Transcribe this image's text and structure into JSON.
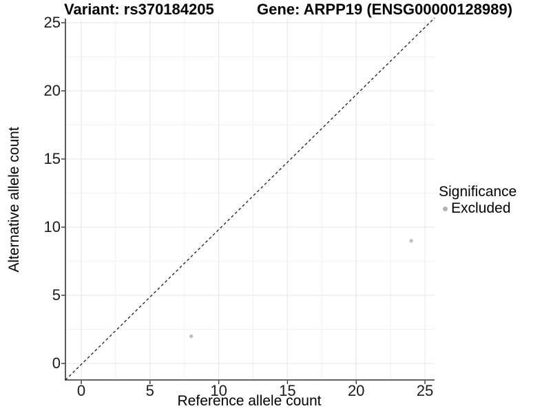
{
  "title": {
    "variant": "Variant: rs370184205",
    "gene": "Gene: ARPP19 (ENSG00000128989)"
  },
  "chart_data": {
    "type": "scatter",
    "title": "Variant: rs370184205   Gene: ARPP19 (ENSG00000128989)",
    "xlabel": "Reference allele count",
    "ylabel": "Alternative allele count",
    "xlim": [
      -1.1,
      25.7
    ],
    "ylim": [
      -1.2,
      25.3
    ],
    "x_ticks": [
      0,
      5,
      10,
      15,
      20,
      25
    ],
    "y_ticks": [
      0,
      5,
      10,
      15,
      20,
      25
    ],
    "minor_ticks": [
      2.5,
      7.5,
      12.5,
      17.5,
      22.5
    ],
    "grid": true,
    "reference_line": {
      "type": "identity-diagonal",
      "style": "dashed",
      "color": "#1a1a1a"
    },
    "series": [
      {
        "name": "Excluded",
        "color": "#bfbfbf",
        "points": [
          {
            "x": 8,
            "y": 2
          },
          {
            "x": 24,
            "y": 9
          }
        ]
      }
    ],
    "legend": {
      "title": "Significance",
      "position": "right",
      "items": [
        {
          "label": "Excluded",
          "color": "#b3b3b3"
        }
      ]
    }
  },
  "colors": {
    "background": "#ffffff",
    "grid_major": "#e4e4e4",
    "grid_minor": "#f1f1f1",
    "axis_line": "#333333",
    "tick_text": "#1a1a1a",
    "point": "#bfbfbf",
    "dashed_line": "#1a1a1a"
  }
}
